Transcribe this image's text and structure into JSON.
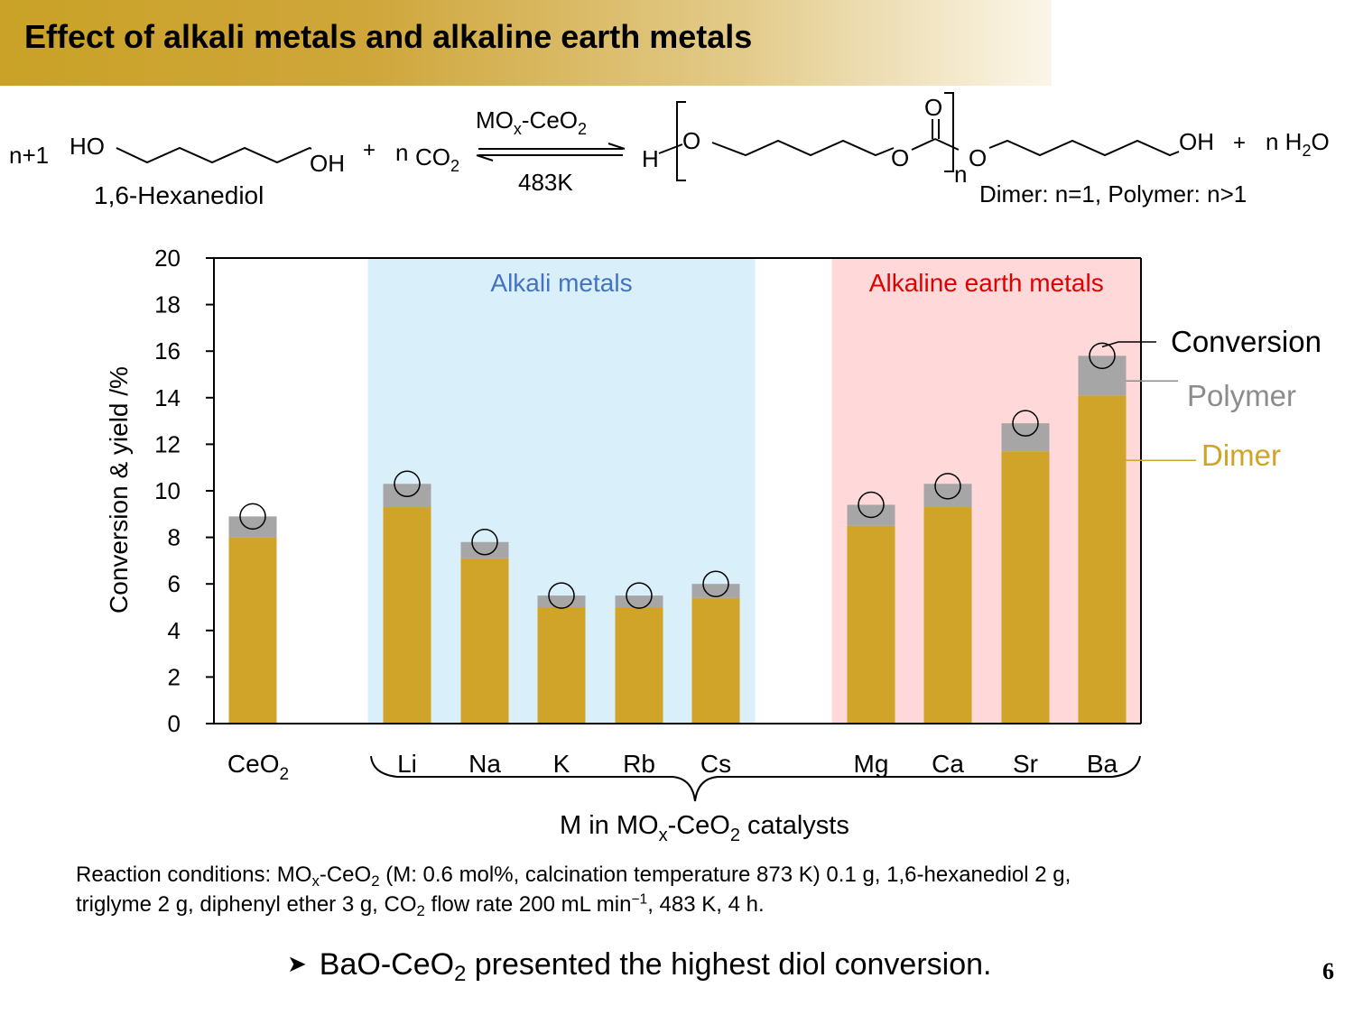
{
  "slide": {
    "title": "Effect of alkali metals and alkaline earth metals",
    "page_number": "6"
  },
  "reaction": {
    "reactant_coeff": "n+1",
    "hexanediol_label": "1,6-Hexanediol",
    "ho": "HO",
    "oh": "OH",
    "plus": "+",
    "co2_coeff": "n",
    "co2_main": "CO",
    "co2_sub": "2",
    "catalyst_main": "MO",
    "catalyst_sub": "x",
    "catalyst_rest": "-CeO",
    "catalyst_sub2": "2",
    "temperature": "483K",
    "product_h": "H",
    "product_o": "O",
    "product_n": "n",
    "product_oh": "OH",
    "water_plus": "+",
    "water_main": "n H",
    "water_sub": "2",
    "water_o": "O",
    "product_note": "Dimer: n=1, Polymer: n>1"
  },
  "chart_data": {
    "type": "bar",
    "stacked": true,
    "ylabel": "Conversion & yield /%",
    "ylim": [
      0,
      20
    ],
    "yticks": [
      0,
      2,
      4,
      6,
      8,
      10,
      12,
      14,
      16,
      18,
      20
    ],
    "grid": false,
    "categories": [
      "CeO2",
      "Li",
      "Na",
      "K",
      "Rb",
      "Cs",
      "Mg",
      "Ca",
      "Sr",
      "Ba"
    ],
    "category_display": [
      {
        "main": "CeO",
        "sub": "2"
      },
      {
        "main": "Li",
        "sub": ""
      },
      {
        "main": "Na",
        "sub": ""
      },
      {
        "main": "K",
        "sub": ""
      },
      {
        "main": "Rb",
        "sub": ""
      },
      {
        "main": "Cs",
        "sub": ""
      },
      {
        "main": "Mg",
        "sub": ""
      },
      {
        "main": "Ca",
        "sub": ""
      },
      {
        "main": "Sr",
        "sub": ""
      },
      {
        "main": "Ba",
        "sub": ""
      }
    ],
    "series": [
      {
        "name": "Dimer",
        "color": "#cfa428",
        "values": [
          8.0,
          9.3,
          7.1,
          5.0,
          5.0,
          5.4,
          8.5,
          9.3,
          11.7,
          14.1
        ]
      },
      {
        "name": "Polymer",
        "color": "#a6a6a6",
        "values": [
          0.9,
          1.0,
          0.7,
          0.5,
          0.5,
          0.6,
          0.9,
          1.0,
          1.2,
          1.7
        ]
      }
    ],
    "conversion": {
      "name": "Conversion",
      "values": [
        8.9,
        10.3,
        7.8,
        5.5,
        5.5,
        6.0,
        9.4,
        10.2,
        12.9,
        15.8
      ]
    },
    "groups": [
      {
        "label": "Alkali metals",
        "color": "#4472c4",
        "background": "#d9eff9",
        "from": "Li",
        "to": "Cs"
      },
      {
        "label": "Alkaline earth metals",
        "color": "#e00000",
        "background": "#ffd9d9",
        "from": "Mg",
        "to": "Ba"
      }
    ],
    "legend": [
      {
        "label": "Conversion",
        "color": "#000000"
      },
      {
        "label": "Polymer",
        "color": "#8c8c8c"
      },
      {
        "label": "Dimer",
        "color": "#cfa428"
      }
    ],
    "legend_placement": "right",
    "xlabel": {
      "pre": "M in MO",
      "sub": "x",
      "mid": "-CeO",
      "sub2": "2",
      "post": " catalysts"
    }
  },
  "conditions": {
    "line1_a": "Reaction conditions: MO",
    "line1_sub_x": "x",
    "line1_b": "-CeO",
    "line1_sub_2": "2",
    "line1_c": " (M: 0.6 mol%, calcination temperature 873 K) 0.1 g, 1,6-hexanediol 2 g,",
    "line2_a": "triglyme 2 g, diphenyl ether 3 g, CO",
    "line2_sub": "2",
    "line2_b": " flow rate 200 mL min",
    "line2_sup": "−1",
    "line2_c": ", 483 K, 4 h."
  },
  "conclusion": {
    "main": "BaO-CeO",
    "sub": "2",
    "rest": " presented the highest diol conversion."
  }
}
